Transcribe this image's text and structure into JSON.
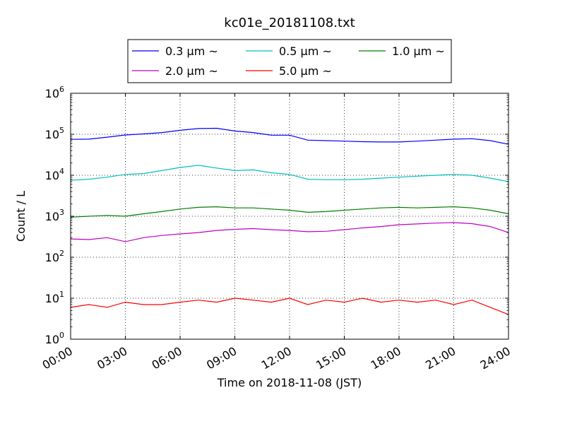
{
  "chart_data": {
    "type": "line",
    "title": "kc01e_20181108.txt",
    "xlabel": "Time on 2018-11-08 (JST)",
    "ylabel": "Count / L",
    "x_range": [
      "00:00",
      "24:00"
    ],
    "x_ticks": [
      "00:00",
      "03:00",
      "06:00",
      "09:00",
      "12:00",
      "15:00",
      "18:00",
      "21:00",
      "24:00"
    ],
    "yscale": "log",
    "ylim": [
      1,
      1000000
    ],
    "y_ticks": [
      {
        "base": "10",
        "exp": "0"
      },
      {
        "base": "10",
        "exp": "1"
      },
      {
        "base": "10",
        "exp": "2"
      },
      {
        "base": "10",
        "exp": "3"
      },
      {
        "base": "10",
        "exp": "4"
      },
      {
        "base": "10",
        "exp": "5"
      },
      {
        "base": "10",
        "exp": "6"
      }
    ],
    "grid": true,
    "legend_position": "top (above plot)",
    "x_hours": [
      0,
      1,
      2,
      3,
      4,
      5,
      6,
      7,
      8,
      9,
      10,
      11,
      12,
      13,
      14,
      15,
      16,
      17,
      18,
      19,
      20,
      21,
      22,
      23,
      24
    ],
    "series": [
      {
        "name": "0.3 μm ~",
        "color": "#0000ff",
        "values": [
          75000,
          76000,
          85000,
          96000,
          102000,
          110000,
          125000,
          138000,
          140000,
          120000,
          110000,
          95000,
          95000,
          72000,
          70000,
          68000,
          66000,
          65000,
          65000,
          68000,
          72000,
          76000,
          78000,
          70000,
          57000
        ]
      },
      {
        "name": "0.5 μm ~",
        "color": "#00bfbf",
        "values": [
          7500,
          8000,
          9000,
          10500,
          11000,
          13000,
          15500,
          17500,
          15000,
          13000,
          13500,
          11500,
          10500,
          8000,
          7800,
          7800,
          8000,
          8500,
          9000,
          9500,
          10000,
          10500,
          10000,
          8500,
          7000
        ]
      },
      {
        "name": "1.0 μm ~",
        "color": "#008000",
        "values": [
          950,
          1000,
          1050,
          1000,
          1150,
          1300,
          1500,
          1650,
          1700,
          1600,
          1600,
          1500,
          1400,
          1250,
          1300,
          1400,
          1500,
          1600,
          1650,
          1600,
          1650,
          1700,
          1600,
          1400,
          1150
        ]
      },
      {
        "name": "2.0 μm ~",
        "color": "#bf00bf",
        "values": [
          280,
          270,
          300,
          240,
          300,
          340,
          370,
          400,
          450,
          480,
          500,
          470,
          450,
          420,
          430,
          470,
          520,
          560,
          620,
          650,
          680,
          700,
          660,
          560,
          400
        ]
      },
      {
        "name": "5.0 μm ~",
        "color": "#ff0000",
        "values": [
          6,
          7,
          6,
          8,
          7,
          7,
          8,
          9,
          8,
          10,
          9,
          8,
          10,
          7,
          9,
          8,
          10,
          8,
          9,
          8,
          9,
          7,
          9,
          6,
          4
        ]
      }
    ]
  }
}
